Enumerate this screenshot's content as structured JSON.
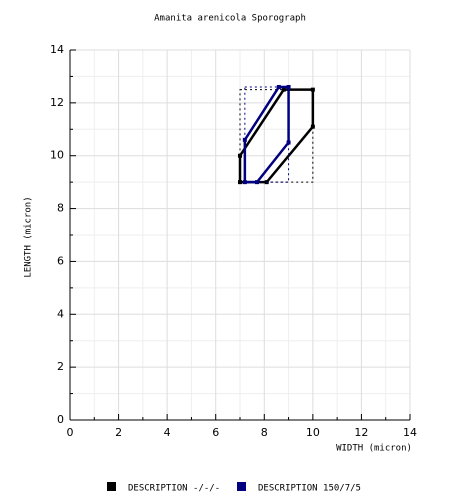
{
  "chart_data": {
    "type": "polygon",
    "title": "Amanita arenicola Sporograph",
    "x_label": "WIDTH (micron)",
    "y_label": "LENGTH (micron)",
    "xlim": [
      0,
      14
    ],
    "ylim": [
      0,
      14
    ],
    "xticks": [
      0,
      2,
      4,
      6,
      8,
      10,
      12,
      14
    ],
    "yticks": [
      0,
      2,
      4,
      6,
      8,
      10,
      12,
      14
    ],
    "grid": true,
    "legend": "bottom",
    "series": [
      {
        "name": "DESCRIPTION -/-/-",
        "color": "#000000",
        "x": [
          7,
          7,
          8.8,
          10,
          10,
          8.1
        ],
        "values": [
          9,
          10,
          12.5,
          12.5,
          11.1,
          9
        ]
      },
      {
        "name": "DESCRIPTION 150/7/5",
        "color": "#000080",
        "x": [
          7.2,
          7.2,
          8.6,
          9,
          9,
          7.7
        ],
        "values": [
          9,
          10.6,
          12.6,
          12.6,
          10.5,
          9
        ]
      }
    ]
  }
}
